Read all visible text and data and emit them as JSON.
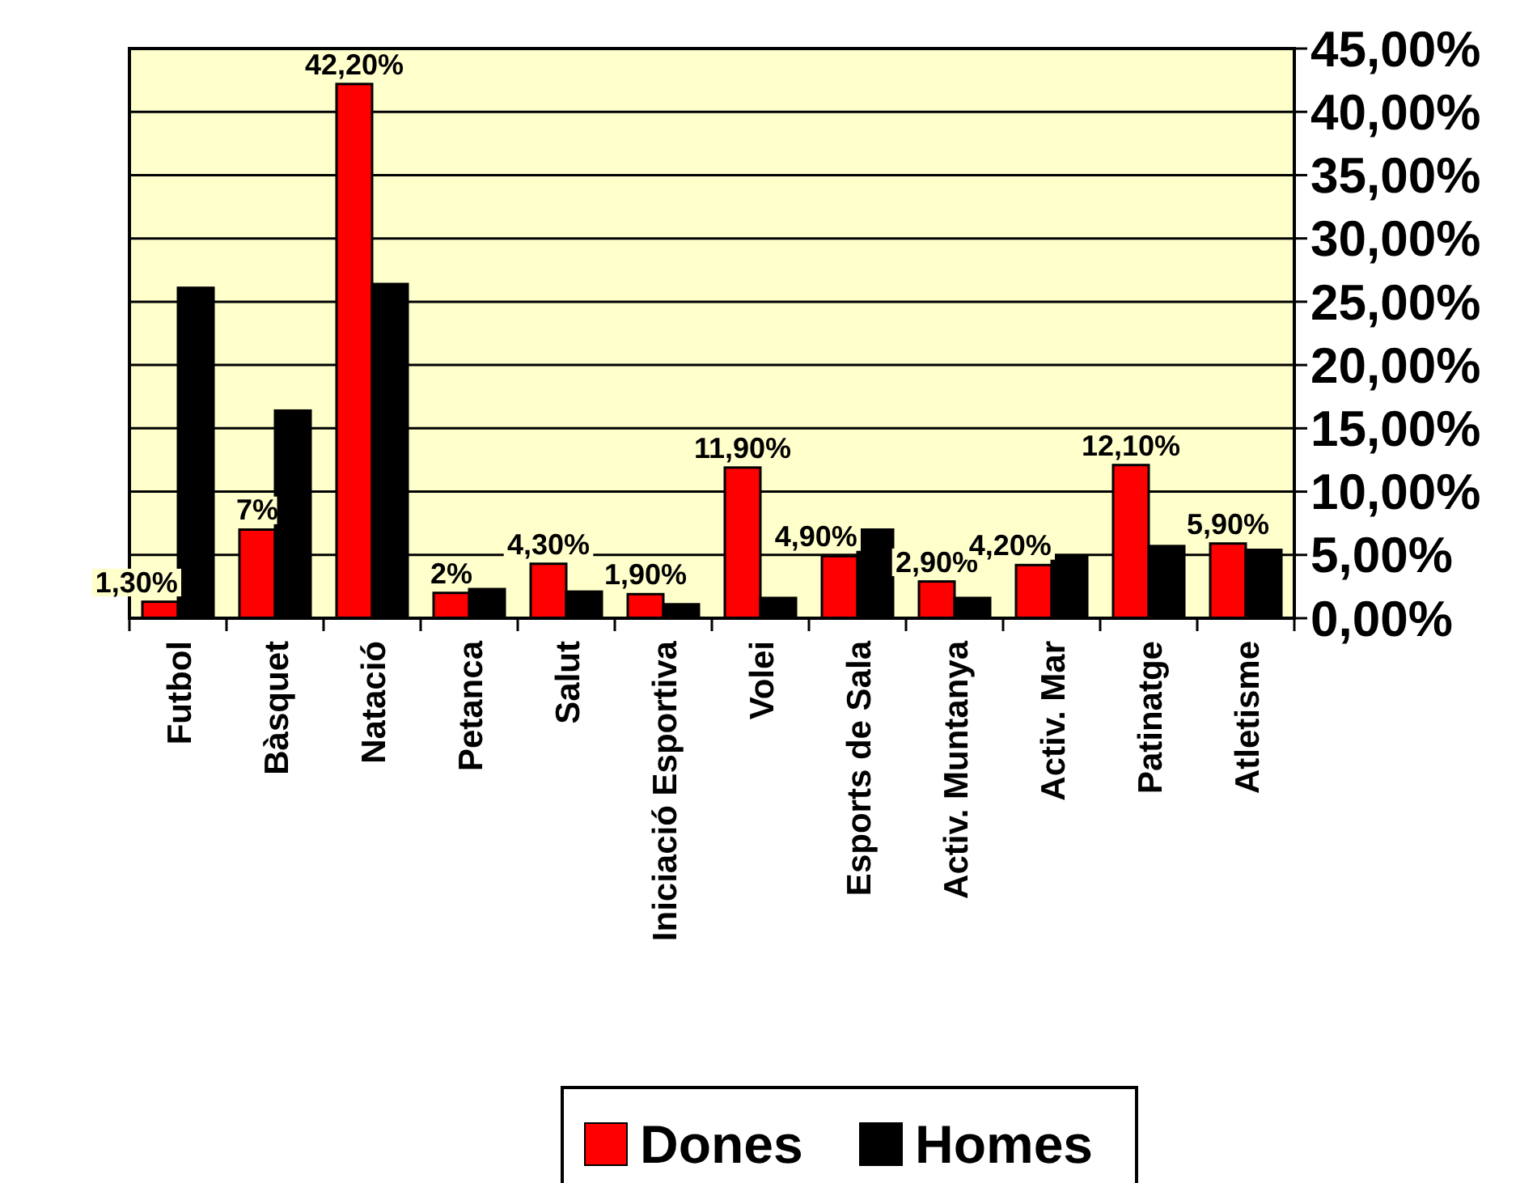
{
  "chart_data": {
    "type": "bar",
    "categories": [
      "Futbol",
      "Bàsquet",
      "Natació",
      "Petanca",
      "Salut",
      "Iniciació Esportiva",
      "Volei",
      "Esports de Sala",
      "Activ. Muntanya",
      "Activ. Mar",
      "Patinatge",
      "Atletisme"
    ],
    "series": [
      {
        "name": "Dones",
        "color": "#ff0000",
        "values": [
          1.3,
          7,
          42.2,
          2,
          4.3,
          1.9,
          11.9,
          4.9,
          2.9,
          4.2,
          12.1,
          5.9
        ],
        "value_labels": [
          "1,30%",
          "7%",
          "42,20%",
          "2%",
          "4,30%",
          "1,90%",
          "11,90%",
          "4,90%",
          "2,90%",
          "4,20%",
          "12,10%",
          "5,90%"
        ]
      },
      {
        "name": "Homes",
        "color": "#000000",
        "values": [
          26.1,
          16.4,
          26.4,
          2.3,
          2.1,
          1.1,
          1.6,
          7.0,
          1.6,
          4.9,
          5.7,
          5.4
        ]
      }
    ],
    "ylim": [
      0,
      45
    ],
    "yticks": [
      {
        "value": 0,
        "label": "0,00%"
      },
      {
        "value": 5,
        "label": "5,00%"
      },
      {
        "value": 10,
        "label": "10,00%"
      },
      {
        "value": 15,
        "label": "15,00%"
      },
      {
        "value": 20,
        "label": "20,00%"
      },
      {
        "value": 25,
        "label": "25,00%"
      },
      {
        "value": 30,
        "label": "30,00%"
      },
      {
        "value": 35,
        "label": "35,00%"
      },
      {
        "value": 40,
        "label": "40,00%"
      },
      {
        "value": 45,
        "label": "45,00%"
      }
    ],
    "grid": "y",
    "legend": "bottom"
  }
}
